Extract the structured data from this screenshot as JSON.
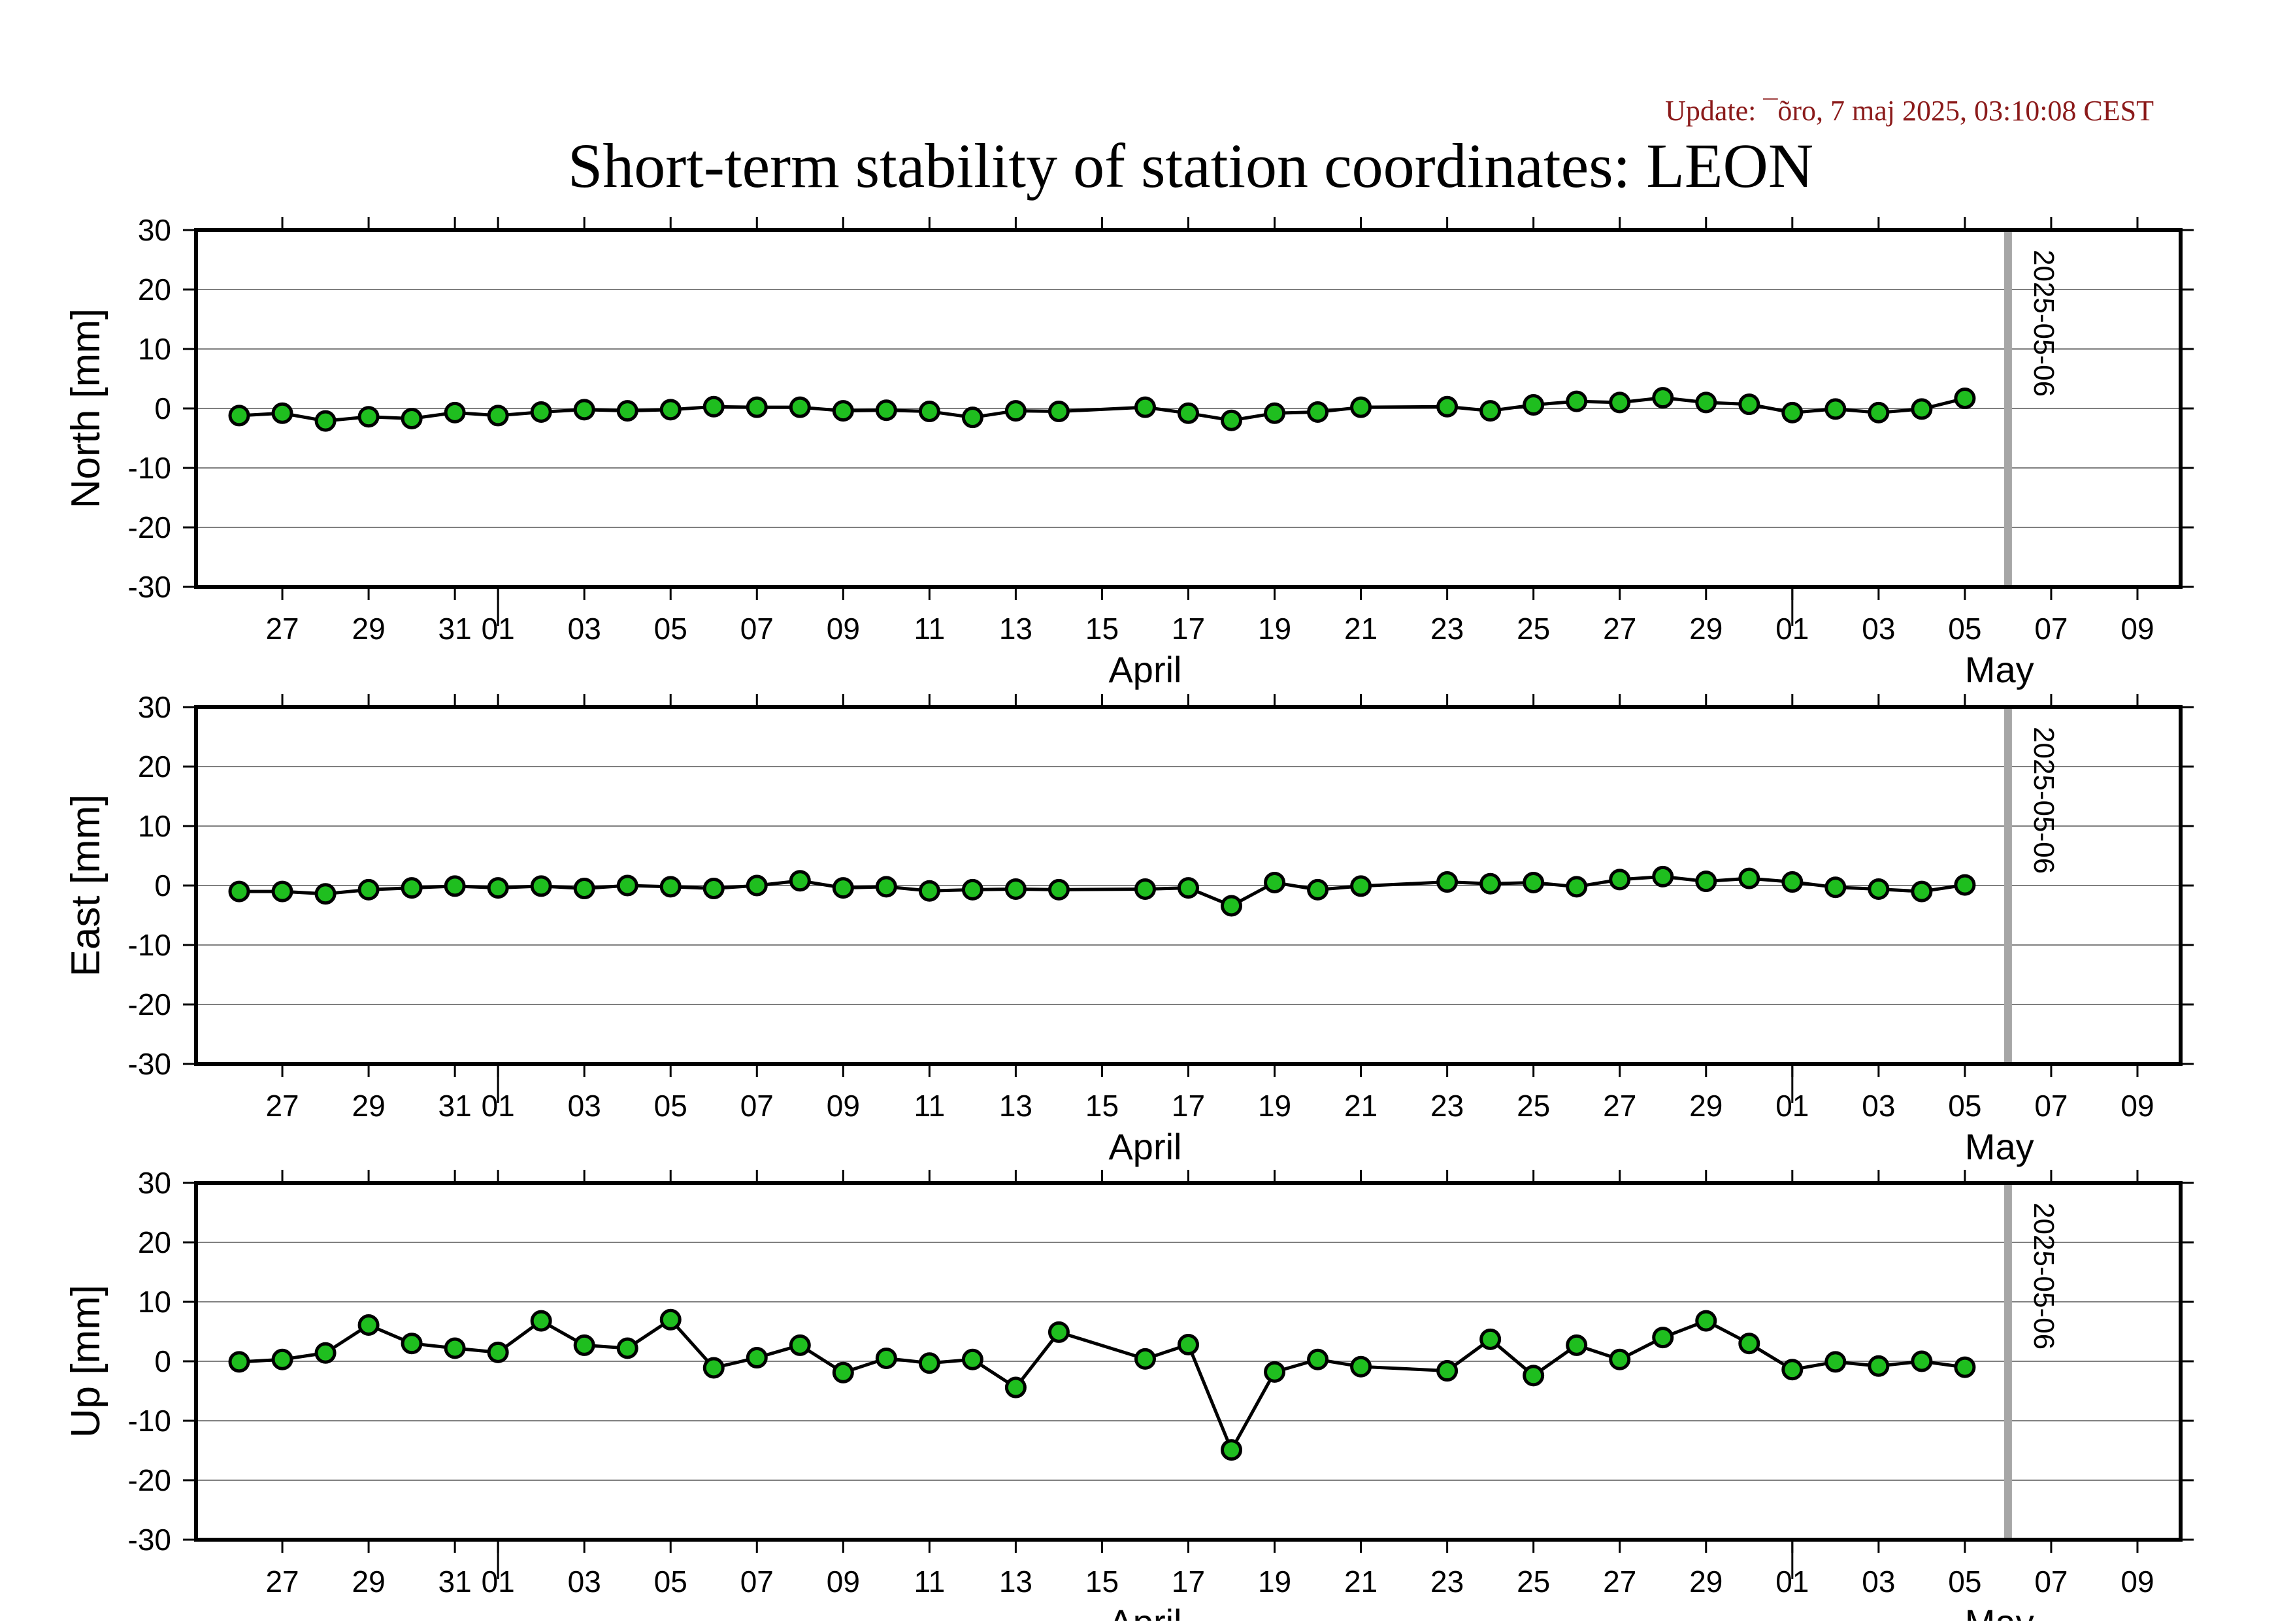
{
  "update_text": "Update: ¯õro, 7 maj 2025, 03:10:08 CEST",
  "title": "Short-term stability of station coordinates: LEON",
  "colors": {
    "update": "#8b1a1a",
    "marker_fill": "#1fbe1f",
    "marker_stroke": "#000000",
    "line": "#000000",
    "grid": "#808080",
    "marker_line": "#a6a6a6",
    "frame": "#000000"
  },
  "chart_data": [
    {
      "type": "line",
      "ylabel": "North [mm]",
      "ylim": [
        -30,
        30
      ],
      "yticks": [
        30,
        20,
        10,
        0,
        -10,
        -20,
        -30
      ],
      "grid": "horizontal",
      "date_marker": "2025-05-06",
      "x": [
        "2025-03-26",
        "2025-03-27",
        "2025-03-28",
        "2025-03-29",
        "2025-03-30",
        "2025-03-31",
        "2025-04-01",
        "2025-04-02",
        "2025-04-03",
        "2025-04-04",
        "2025-04-05",
        "2025-04-06",
        "2025-04-07",
        "2025-04-08",
        "2025-04-09",
        "2025-04-10",
        "2025-04-11",
        "2025-04-12",
        "2025-04-13",
        "2025-04-14",
        "2025-04-16",
        "2025-04-17",
        "2025-04-18",
        "2025-04-19",
        "2025-04-20",
        "2025-04-21",
        "2025-04-23",
        "2025-04-24",
        "2025-04-25",
        "2025-04-26",
        "2025-04-27",
        "2025-04-28",
        "2025-04-29",
        "2025-04-30",
        "2025-05-01",
        "2025-05-02",
        "2025-05-03",
        "2025-05-04",
        "2025-05-05"
      ],
      "values": [
        -1.2,
        -0.8,
        -2.1,
        -1.4,
        -1.7,
        -0.7,
        -1.2,
        -0.6,
        -0.2,
        -0.4,
        -0.2,
        0.3,
        0.2,
        0.2,
        -0.4,
        -0.3,
        -0.5,
        -1.5,
        -0.4,
        -0.5,
        0.2,
        -0.8,
        -2.0,
        -0.8,
        -0.6,
        0.2,
        0.3,
        -0.4,
        0.6,
        1.2,
        1.0,
        1.8,
        1.0,
        0.7,
        -0.7,
        -0.1,
        -0.7,
        -0.1,
        1.7
      ]
    },
    {
      "type": "line",
      "ylabel": "East [mm]",
      "ylim": [
        -30,
        30
      ],
      "yticks": [
        30,
        20,
        10,
        0,
        -10,
        -20,
        -30
      ],
      "grid": "horizontal",
      "date_marker": "2025-05-06",
      "x": [
        "2025-03-26",
        "2025-03-27",
        "2025-03-28",
        "2025-03-29",
        "2025-03-30",
        "2025-03-31",
        "2025-04-01",
        "2025-04-02",
        "2025-04-03",
        "2025-04-04",
        "2025-04-05",
        "2025-04-06",
        "2025-04-07",
        "2025-04-08",
        "2025-04-09",
        "2025-04-10",
        "2025-04-11",
        "2025-04-12",
        "2025-04-13",
        "2025-04-14",
        "2025-04-16",
        "2025-04-17",
        "2025-04-18",
        "2025-04-19",
        "2025-04-20",
        "2025-04-21",
        "2025-04-23",
        "2025-04-24",
        "2025-04-25",
        "2025-04-26",
        "2025-04-27",
        "2025-04-28",
        "2025-04-29",
        "2025-04-30",
        "2025-05-01",
        "2025-05-02",
        "2025-05-03",
        "2025-05-04",
        "2025-05-05"
      ],
      "values": [
        -1.0,
        -1.0,
        -1.4,
        -0.7,
        -0.4,
        -0.1,
        -0.4,
        -0.1,
        -0.5,
        0.0,
        -0.2,
        -0.5,
        0.0,
        0.8,
        -0.4,
        -0.2,
        -0.9,
        -0.7,
        -0.6,
        -0.7,
        -0.6,
        -0.4,
        -3.4,
        0.5,
        -0.7,
        -0.1,
        0.6,
        0.3,
        0.5,
        -0.2,
        1.0,
        1.5,
        0.7,
        1.2,
        0.6,
        -0.3,
        -0.6,
        -1.0,
        0.1
      ]
    },
    {
      "type": "line",
      "ylabel": "Up [mm]",
      "ylim": [
        -30,
        30
      ],
      "yticks": [
        30,
        20,
        10,
        0,
        -10,
        -20,
        -30
      ],
      "grid": "horizontal",
      "date_marker": "2025-05-06",
      "x": [
        "2025-03-26",
        "2025-03-27",
        "2025-03-28",
        "2025-03-29",
        "2025-03-30",
        "2025-03-31",
        "2025-04-01",
        "2025-04-02",
        "2025-04-03",
        "2025-04-04",
        "2025-04-05",
        "2025-04-06",
        "2025-04-07",
        "2025-04-08",
        "2025-04-09",
        "2025-04-10",
        "2025-04-11",
        "2025-04-12",
        "2025-04-13",
        "2025-04-14",
        "2025-04-16",
        "2025-04-17",
        "2025-04-18",
        "2025-04-19",
        "2025-04-20",
        "2025-04-21",
        "2025-04-23",
        "2025-04-24",
        "2025-04-25",
        "2025-04-26",
        "2025-04-27",
        "2025-04-28",
        "2025-04-29",
        "2025-04-30",
        "2025-05-01",
        "2025-05-02",
        "2025-05-03",
        "2025-05-04",
        "2025-05-05"
      ],
      "values": [
        -0.1,
        0.3,
        1.4,
        6.1,
        3.0,
        2.2,
        1.5,
        6.8,
        2.7,
        2.2,
        7.0,
        -1.1,
        0.6,
        2.7,
        -1.9,
        0.5,
        -0.3,
        0.3,
        -4.4,
        4.9,
        0.4,
        2.8,
        -14.9,
        -1.8,
        0.3,
        -0.9,
        -1.6,
        3.7,
        -2.4,
        2.7,
        0.3,
        4.0,
        6.8,
        3.0,
        -1.4,
        -0.1,
        -0.8,
        0.0,
        -1.0
      ]
    }
  ],
  "x_axis": {
    "range": [
      "2025-03-25",
      "2025-05-10"
    ],
    "tick_dates": [
      "2025-03-27",
      "2025-03-29",
      "2025-03-31",
      "2025-04-01",
      "2025-04-03",
      "2025-04-05",
      "2025-04-07",
      "2025-04-09",
      "2025-04-11",
      "2025-04-13",
      "2025-04-15",
      "2025-04-17",
      "2025-04-19",
      "2025-04-21",
      "2025-04-23",
      "2025-04-25",
      "2025-04-27",
      "2025-04-29",
      "2025-05-01",
      "2025-05-03",
      "2025-05-05",
      "2025-05-07",
      "2025-05-09"
    ],
    "tick_labels": [
      "27",
      "29",
      "31",
      "01",
      "03",
      "05",
      "07",
      "09",
      "11",
      "13",
      "15",
      "17",
      "19",
      "21",
      "23",
      "25",
      "27",
      "29",
      "01",
      "03",
      "05",
      "07",
      "09"
    ],
    "month_labels": [
      "April",
      "May"
    ]
  }
}
